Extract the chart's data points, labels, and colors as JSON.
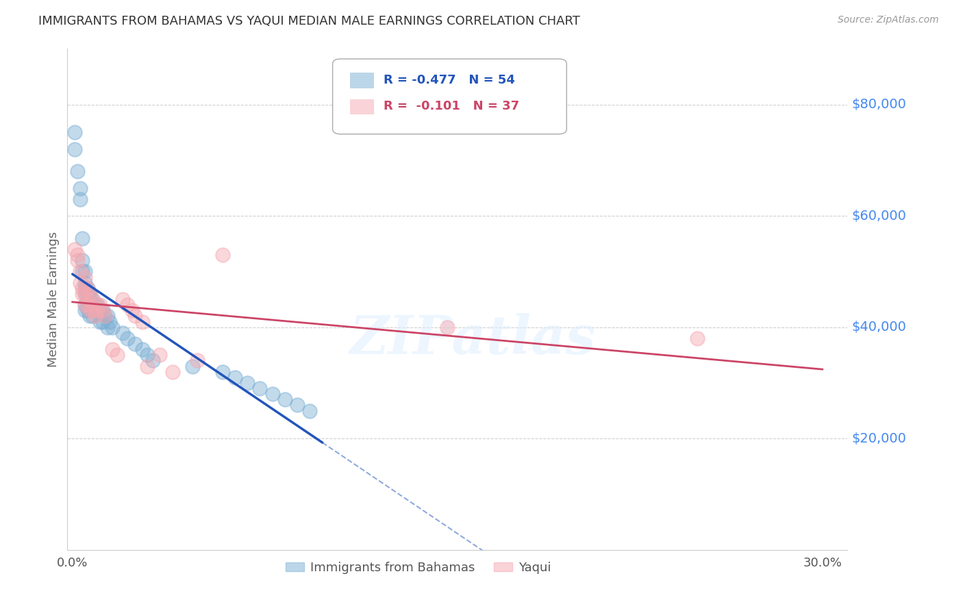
{
  "title": "IMMIGRANTS FROM BAHAMAS VS YAQUI MEDIAN MALE EARNINGS CORRELATION CHART",
  "source": "Source: ZipAtlas.com",
  "ylabel": "Median Male Earnings",
  "y_tick_labels": [
    "$20,000",
    "$40,000",
    "$60,000",
    "$80,000"
  ],
  "y_tick_values": [
    20000,
    40000,
    60000,
    80000
  ],
  "xlim": [
    -0.002,
    0.31
  ],
  "ylim": [
    0,
    90000
  ],
  "legend1_label": "Immigrants from Bahamas",
  "legend2_label": "Yaqui",
  "blue_color": "#7BAFD4",
  "pink_color": "#F4A8B0",
  "trendline_blue": "#2255BB",
  "trendline_pink": "#CC4466",
  "background_color": "#FFFFFF",
  "grid_color": "#BBBBBB",
  "title_color": "#333333",
  "axis_label_color": "#666666",
  "y_tick_color": "#4488EE",
  "watermark_text": "ZIPatlas",
  "blue_x": [
    0.001,
    0.001,
    0.002,
    0.003,
    0.003,
    0.004,
    0.004,
    0.004,
    0.005,
    0.005,
    0.005,
    0.005,
    0.005,
    0.005,
    0.006,
    0.006,
    0.006,
    0.006,
    0.006,
    0.007,
    0.007,
    0.007,
    0.007,
    0.008,
    0.008,
    0.008,
    0.009,
    0.009,
    0.01,
    0.01,
    0.011,
    0.011,
    0.012,
    0.012,
    0.013,
    0.014,
    0.014,
    0.015,
    0.016,
    0.02,
    0.022,
    0.025,
    0.028,
    0.03,
    0.032,
    0.048,
    0.06,
    0.065,
    0.07,
    0.075,
    0.08,
    0.085,
    0.09,
    0.095
  ],
  "blue_y": [
    75000,
    72000,
    68000,
    65000,
    63000,
    56000,
    52000,
    50000,
    50000,
    48000,
    47000,
    46000,
    44000,
    43000,
    47000,
    46000,
    45000,
    44000,
    43000,
    46000,
    45000,
    43000,
    42000,
    45000,
    44000,
    42000,
    44000,
    43000,
    44000,
    43000,
    43000,
    41000,
    43000,
    41000,
    42000,
    42000,
    40000,
    41000,
    40000,
    39000,
    38000,
    37000,
    36000,
    35000,
    34000,
    33000,
    32000,
    31000,
    30000,
    29000,
    28000,
    27000,
    26000,
    25000
  ],
  "pink_x": [
    0.001,
    0.002,
    0.002,
    0.003,
    0.003,
    0.004,
    0.004,
    0.005,
    0.005,
    0.005,
    0.006,
    0.006,
    0.006,
    0.007,
    0.007,
    0.008,
    0.008,
    0.009,
    0.01,
    0.01,
    0.011,
    0.012,
    0.013,
    0.016,
    0.018,
    0.02,
    0.022,
    0.024,
    0.025,
    0.028,
    0.03,
    0.035,
    0.04,
    0.05,
    0.06,
    0.15,
    0.25
  ],
  "pink_y": [
    54000,
    53000,
    52000,
    50000,
    48000,
    47000,
    46000,
    49000,
    46000,
    44000,
    47000,
    45000,
    44000,
    46000,
    43000,
    45000,
    43000,
    42000,
    44000,
    43000,
    44000,
    43000,
    42000,
    36000,
    35000,
    45000,
    44000,
    43000,
    42000,
    41000,
    33000,
    35000,
    32000,
    34000,
    53000,
    40000,
    38000
  ]
}
